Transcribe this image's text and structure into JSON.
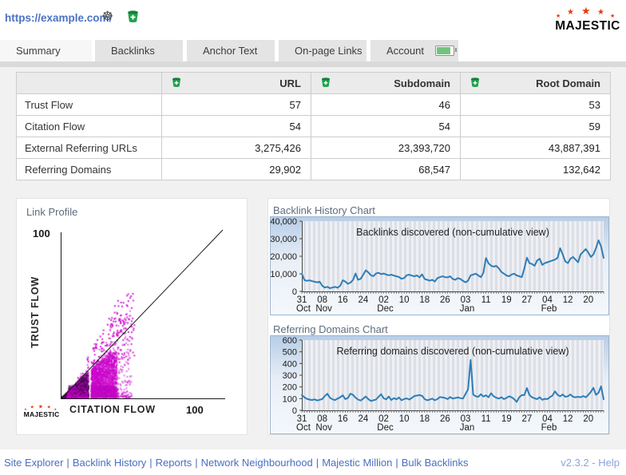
{
  "header": {
    "url": "https://example.com/",
    "logo_text": "MAJESTIC"
  },
  "tabs": [
    {
      "label": "Summary",
      "active": true
    },
    {
      "label": "Backlinks",
      "active": false
    },
    {
      "label": "Anchor Text",
      "active": false
    },
    {
      "label": "On-page Links",
      "active": false
    },
    {
      "label": "Account",
      "active": false,
      "battery": true
    }
  ],
  "table": {
    "columns": [
      "",
      "URL",
      "Subdomain",
      "Root Domain"
    ],
    "rows": [
      {
        "label": "Trust Flow",
        "values": [
          "57",
          "46",
          "53"
        ]
      },
      {
        "label": "Citation Flow",
        "values": [
          "54",
          "54",
          "59"
        ]
      },
      {
        "label": "External Referring URLs",
        "values": [
          "3,275,426",
          "23,393,720",
          "43,887,391"
        ]
      },
      {
        "label": "Referring Domains",
        "values": [
          "29,902",
          "68,547",
          "132,642"
        ]
      }
    ]
  },
  "link_profile": {
    "title": "Link Profile",
    "y_axis_label": "TRUST FLOW",
    "x_axis_label": "CITATION FLOW",
    "y_max_label": "100",
    "x_max_label": "100",
    "logo_text": "MAJESTIC"
  },
  "footer": {
    "links": [
      "Site Explorer",
      "Backlink History",
      "Reports",
      "Network Neighbourhood",
      "Majestic Million",
      "Bulk Backlinks"
    ],
    "separator": "|",
    "version": "v2.3.2",
    "dash": " - ",
    "help": "Help"
  },
  "colors": {
    "link_blue": "#4a72c4",
    "line_blue": "#2e7db8",
    "scatter_magenta": "#cc00cc",
    "logo_red": "#e33b0c",
    "bucket_green": "#1ea24c"
  },
  "chart_data": [
    {
      "type": "line",
      "title": "Backlink History Chart",
      "inner_label": "Backlinks discovered (non-cumulative view)",
      "ylim": [
        0,
        40000
      ],
      "yticks": [
        0,
        10000,
        20000,
        30000,
        40000
      ],
      "ytick_labels": [
        "0",
        "10,000",
        "20,000",
        "30,000",
        "40,000"
      ],
      "xtick_positions": [
        0,
        8,
        16,
        24,
        32,
        40,
        48,
        56,
        64,
        72,
        80,
        88,
        96,
        104,
        112
      ],
      "xtick_labels": [
        {
          "day": "31",
          "month": "Oct"
        },
        {
          "day": "08",
          "month": "Nov"
        },
        {
          "day": "16",
          "month": ""
        },
        {
          "day": "24",
          "month": ""
        },
        {
          "day": "02",
          "month": "Dec"
        },
        {
          "day": "10",
          "month": ""
        },
        {
          "day": "18",
          "month": ""
        },
        {
          "day": "26",
          "month": ""
        },
        {
          "day": "03",
          "month": "Jan"
        },
        {
          "day": "11",
          "month": ""
        },
        {
          "day": "19",
          "month": ""
        },
        {
          "day": "27",
          "month": ""
        },
        {
          "day": "04",
          "month": "Feb"
        },
        {
          "day": "12",
          "month": ""
        },
        {
          "day": "20",
          "month": ""
        }
      ],
      "values": [
        10000,
        6500,
        6000,
        6300,
        5800,
        5500,
        5200,
        5500,
        3200,
        2200,
        2600,
        1800,
        2200,
        2600,
        2100,
        3200,
        6300,
        5600,
        4300,
        5000,
        6500,
        10200,
        6600,
        7200,
        9500,
        12000,
        10800,
        9200,
        8700,
        10200,
        10600,
        9800,
        10200,
        9600,
        9200,
        9500,
        9000,
        8600,
        8200,
        7200,
        7600,
        9200,
        9500,
        9000,
        8600,
        9100,
        8000,
        9700,
        7100,
        6600,
        6100,
        6600,
        5600,
        7600,
        8100,
        8600,
        8100,
        8000,
        8600,
        7100,
        6600,
        7600,
        7100,
        6000,
        5200,
        6100,
        9100,
        9600,
        10100,
        9100,
        8100,
        10600,
        19000,
        16000,
        14600,
        14100,
        14600,
        13100,
        11100,
        10100,
        9100,
        8600,
        9600,
        10100,
        9100,
        8600,
        8100,
        13100,
        19200,
        16100,
        15600,
        14600,
        17600,
        18600,
        15100,
        16100,
        16600,
        17100,
        17600,
        18100,
        19100,
        24600,
        21100,
        17100,
        16100,
        18600,
        19600,
        18100,
        16600,
        21100,
        22600,
        24100,
        22100,
        19600,
        21100,
        24600,
        29100,
        25600,
        19100
      ]
    },
    {
      "type": "line",
      "title": "Referring Domains Chart",
      "inner_label": "Referring domains discovered (non-cumulative view)",
      "ylim": [
        0,
        600
      ],
      "yticks": [
        0,
        100,
        200,
        300,
        400,
        500,
        600
      ],
      "ytick_labels": [
        "0",
        "100",
        "200",
        "300",
        "400",
        "500",
        "600"
      ],
      "xtick_positions": [
        0,
        8,
        16,
        24,
        32,
        40,
        48,
        56,
        64,
        72,
        80,
        88,
        96,
        104,
        112
      ],
      "xtick_labels": [
        {
          "day": "31",
          "month": "Oct"
        },
        {
          "day": "08",
          "month": "Nov"
        },
        {
          "day": "16",
          "month": ""
        },
        {
          "day": "24",
          "month": ""
        },
        {
          "day": "02",
          "month": "Dec"
        },
        {
          "day": "10",
          "month": ""
        },
        {
          "day": "18",
          "month": ""
        },
        {
          "day": "26",
          "month": ""
        },
        {
          "day": "03",
          "month": "Jan"
        },
        {
          "day": "11",
          "month": ""
        },
        {
          "day": "19",
          "month": ""
        },
        {
          "day": "27",
          "month": ""
        },
        {
          "day": "04",
          "month": "Feb"
        },
        {
          "day": "12",
          "month": ""
        },
        {
          "day": "20",
          "month": ""
        }
      ],
      "values": [
        130,
        112,
        98,
        92,
        88,
        94,
        84,
        90,
        96,
        122,
        142,
        108,
        94,
        88,
        100,
        112,
        128,
        96,
        106,
        142,
        132,
        108,
        92,
        84,
        100,
        118,
        96,
        80,
        86,
        92,
        116,
        138,
        102,
        94,
        118,
        88,
        104,
        94,
        110,
        86,
        96,
        102,
        92,
        106,
        122,
        126,
        130,
        124,
        96,
        86,
        92,
        100,
        86,
        96,
        114,
        110,
        106,
        96,
        114,
        100,
        106,
        110,
        104,
        100,
        140,
        180,
        430,
        135,
        120,
        115,
        138,
        118,
        128,
        112,
        146,
        120,
        108,
        100,
        112,
        96,
        106,
        120,
        112,
        96,
        72,
        112,
        130,
        130,
        190,
        130,
        112,
        102,
        96,
        112,
        90,
        98,
        96,
        112,
        126,
        162,
        132,
        120,
        136,
        116,
        120,
        136,
        116,
        112,
        116,
        112,
        122,
        112,
        132,
        158,
        192,
        132,
        150,
        205,
        95
      ]
    },
    {
      "type": "scatter",
      "title": "Link Profile",
      "xlabel": "CITATION FLOW",
      "ylabel": "TRUST FLOW",
      "xlim": [
        0,
        100
      ],
      "ylim": [
        0,
        100
      ],
      "note": "dense magenta density scatter below the 1:1 diagonal; approximated by generated clusters",
      "generator": {
        "seed": 1337,
        "point_size": 2,
        "gap_cf": [
          16.3,
          17.9
        ],
        "clusters": [
          {
            "n": 2600,
            "cf": [
              0,
              17
            ],
            "tf_rel": [
              0,
              0.95
            ],
            "tf_pow": 1,
            "color": "rgba(85,0,95,0.40)"
          },
          {
            "n": 1300,
            "cf": [
              4,
              33
            ],
            "tf_abs": [
              0,
              7
            ],
            "tf_pow": 1,
            "color": "rgba(90,0,100,0.35)"
          },
          {
            "n": 1700,
            "cf": [
              18,
              34
            ],
            "tf_rel": [
              0,
              0.92
            ],
            "tf_pow": 1,
            "color": "rgba(204,0,204,0.50)",
            "tf_max": 27
          },
          {
            "n": 600,
            "cf": [
              3,
              43
            ],
            "tf_rel": [
              0,
              1.25
            ],
            "tf_pow": 2,
            "color": "rgba(204,0,204,0.55)"
          },
          {
            "n": 180,
            "cf": [
              15,
              45
            ],
            "tf_rel": [
              0.55,
              1.6
            ],
            "tf_pow": 1,
            "color": "rgba(204,0,204,0.85)",
            "tf_max": 62
          },
          {
            "n": 24,
            "cf": [
              28,
              42
            ],
            "tf_abs": [
              36,
              58
            ],
            "tf_pow": 1,
            "color": "rgba(204,0,204,0.9)"
          }
        ]
      }
    }
  ]
}
